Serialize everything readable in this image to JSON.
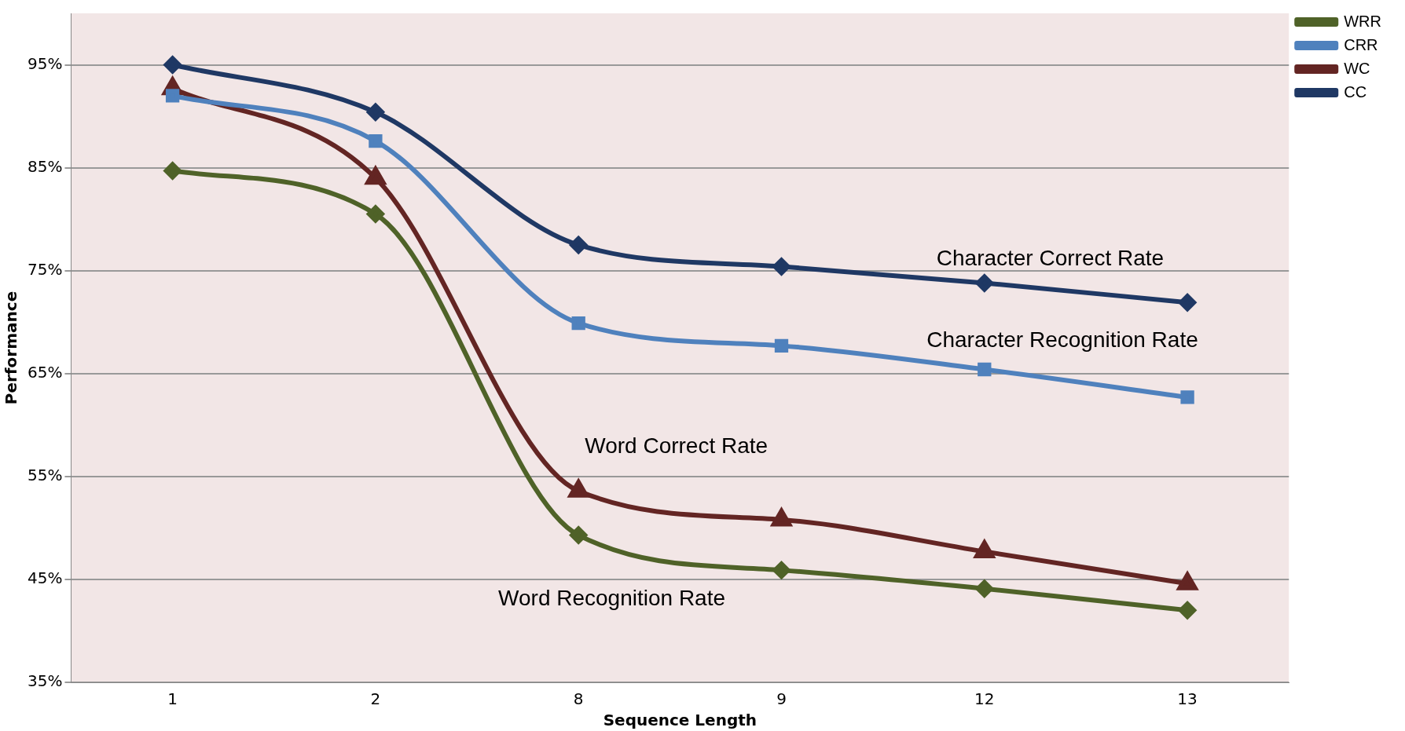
{
  "chart_data": {
    "type": "line",
    "xlabel": "Sequence Length",
    "ylabel": "Performance",
    "categories": [
      "1",
      "2",
      "8",
      "9",
      "12",
      "13"
    ],
    "series": [
      {
        "name": "WRR",
        "color": "#4f6228",
        "marker": "diamond",
        "values": [
          84.7,
          80.5,
          49.3,
          45.9,
          44.1,
          42.0
        ]
      },
      {
        "name": "CRR",
        "color": "#4f81bd",
        "marker": "square",
        "values": [
          92.0,
          87.6,
          69.9,
          67.7,
          65.4,
          62.7
        ]
      },
      {
        "name": "WC",
        "color": "#632523",
        "marker": "triangle",
        "values": [
          92.7,
          84.0,
          53.6,
          50.8,
          47.7,
          44.6
        ]
      },
      {
        "name": "CC",
        "color": "#1f3864",
        "marker": "diamond",
        "values": [
          95.0,
          90.4,
          77.5,
          75.4,
          73.8,
          71.9
        ]
      }
    ],
    "ylim": [
      35,
      100
    ],
    "yticks": [
      {
        "value": 35,
        "label": "35%"
      },
      {
        "value": 45,
        "label": "45%"
      },
      {
        "value": 55,
        "label": "55%"
      },
      {
        "value": 65,
        "label": "65%"
      },
      {
        "value": 75,
        "label": "75%"
      },
      {
        "value": 85,
        "label": "85%"
      },
      {
        "value": 95,
        "label": "95%"
      }
    ],
    "grid": "y",
    "legend": "top right",
    "line_style": "solid",
    "annotations": [
      "Character Correct Rate",
      "Character Recognition Rate",
      "Word Correct Rate",
      "Word Recognition Rate"
    ]
  }
}
